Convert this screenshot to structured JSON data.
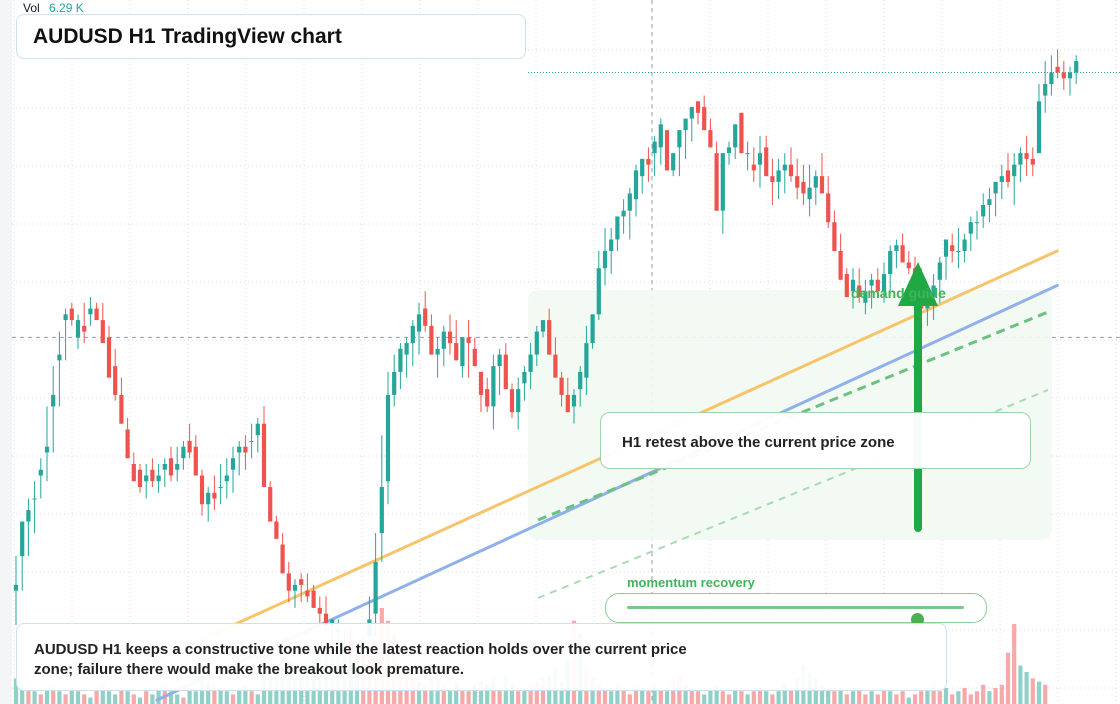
{
  "header": {
    "vol_label": "Vol",
    "vol_value": "6.29 K"
  },
  "title": "AUDUSD H1 TradingView chart",
  "annotations": {
    "callout": "H1 retest above the current price zone",
    "demand_label": "demand guide",
    "momentum_label": "momentum recovery",
    "momentum_level": 0.86,
    "note": "AUDUSD H1 keeps a constructive tone while the latest reaction holds over the current price zone; failure there would make the breakout look premature."
  },
  "colors": {
    "up": "#26a69a",
    "down": "#ef5350",
    "vol_up": "#8fd1c9",
    "vol_down": "#f6a9a8",
    "trend_orange": "#f7c46c",
    "trend_blue": "#8fb0ea",
    "accent_green": "#1fa843",
    "grid": "#d9dde3"
  },
  "chart_data": {
    "type": "candlestick",
    "symbol": "AUDUSD",
    "timeframe": "H1",
    "title": "AUDUSD H1 TradingView chart",
    "ylim": [
      0,
      100
    ],
    "grid": true,
    "candles_ohlc": [
      [
        14,
        8,
        15,
        20
      ],
      [
        20,
        14,
        26,
        26
      ],
      [
        26,
        20,
        28,
        30
      ],
      [
        30,
        24,
        30,
        33
      ],
      [
        34,
        30,
        35,
        37
      ],
      [
        38,
        33,
        39,
        46
      ],
      [
        46,
        38,
        48,
        53
      ],
      [
        54,
        46,
        55,
        59
      ],
      [
        61,
        54,
        62,
        63
      ],
      [
        63,
        60,
        61,
        64
      ],
      [
        58,
        56,
        61,
        62
      ],
      [
        60,
        57,
        59,
        64
      ],
      [
        62,
        60,
        63,
        65
      ],
      [
        63,
        61,
        61,
        64
      ],
      [
        61,
        59,
        57,
        64
      ],
      [
        58,
        55,
        51,
        60
      ],
      [
        53,
        47,
        48,
        56
      ],
      [
        48,
        46,
        43,
        51
      ],
      [
        42,
        40,
        37,
        44
      ],
      [
        36,
        33,
        33,
        38
      ],
      [
        35,
        31,
        32,
        36
      ],
      [
        33,
        30,
        34,
        36
      ],
      [
        35,
        32,
        33,
        37
      ],
      [
        33,
        31,
        34,
        36
      ],
      [
        35,
        32,
        36,
        37
      ],
      [
        37,
        33,
        34,
        39
      ],
      [
        35,
        33,
        36,
        39
      ],
      [
        37,
        35,
        39,
        40
      ],
      [
        40,
        37,
        38,
        43
      ],
      [
        39,
        36,
        34,
        41
      ],
      [
        34,
        27,
        29,
        35
      ],
      [
        29,
        26,
        31,
        32
      ],
      [
        31,
        28,
        30,
        34
      ],
      [
        32,
        29,
        32,
        36
      ],
      [
        33,
        30,
        34,
        37
      ],
      [
        35,
        31,
        37,
        39
      ],
      [
        38,
        34,
        39,
        40
      ],
      [
        39,
        35,
        38,
        41
      ],
      [
        40,
        37,
        40,
        43
      ],
      [
        41,
        38,
        43,
        44
      ],
      [
        43,
        33,
        32,
        46
      ],
      [
        32,
        27,
        26,
        33
      ],
      [
        26,
        23,
        23,
        27
      ],
      [
        22,
        20,
        17,
        24
      ],
      [
        17,
        12,
        14,
        19
      ],
      [
        14,
        11,
        15,
        16
      ],
      [
        16,
        12,
        15,
        17
      ],
      [
        14,
        12,
        13,
        17
      ],
      [
        14,
        11,
        11,
        15
      ],
      [
        11,
        8,
        10,
        13
      ],
      [
        10,
        7,
        8,
        13
      ],
      [
        8,
        5,
        9,
        9
      ],
      [
        7,
        4,
        7,
        9
      ],
      [
        6,
        4,
        6,
        7
      ],
      [
        5,
        3,
        3,
        8
      ],
      [
        3,
        2,
        2,
        4
      ],
      [
        3,
        2,
        5,
        6
      ],
      [
        6,
        5,
        9,
        13
      ],
      [
        10,
        6,
        19,
        24
      ],
      [
        24,
        19,
        32,
        41
      ],
      [
        33,
        29,
        48,
        52
      ],
      [
        48,
        46,
        52,
        55
      ],
      [
        52,
        49,
        56,
        57
      ],
      [
        55,
        51,
        57,
        58
      ],
      [
        57,
        53,
        60,
        61
      ],
      [
        59,
        55,
        62,
        64
      ],
      [
        63,
        59,
        60,
        66
      ],
      [
        60,
        57,
        55,
        62
      ],
      [
        55,
        51,
        56,
        58
      ],
      [
        56,
        53,
        59,
        60
      ],
      [
        59,
        55,
        57,
        62
      ],
      [
        57,
        54,
        54,
        61
      ],
      [
        53,
        51,
        58,
        58
      ],
      [
        58,
        51,
        57,
        61
      ],
      [
        56,
        54,
        53,
        58
      ],
      [
        52,
        45,
        48,
        52
      ],
      [
        49,
        45,
        46,
        51
      ],
      [
        46,
        42,
        53,
        55
      ],
      [
        53,
        48,
        55,
        56
      ],
      [
        55,
        51,
        49,
        57
      ],
      [
        49,
        44,
        45,
        50
      ],
      [
        45,
        42,
        49,
        51
      ],
      [
        50,
        47,
        52,
        53
      ],
      [
        52,
        49,
        55,
        57
      ],
      [
        55,
        53,
        59,
        60
      ],
      [
        59,
        58,
        61,
        61
      ],
      [
        61,
        57,
        55,
        63
      ],
      [
        55,
        53,
        51,
        58
      ],
      [
        51,
        46,
        48,
        52
      ],
      [
        48,
        46,
        45,
        51
      ],
      [
        46,
        43,
        48,
        49
      ],
      [
        49,
        46,
        52,
        53
      ],
      [
        51,
        48,
        57,
        60
      ],
      [
        57,
        56,
        62,
        62
      ],
      [
        62,
        61,
        70,
        73
      ],
      [
        70,
        67,
        73,
        77
      ],
      [
        73,
        69,
        75,
        77
      ],
      [
        75,
        73,
        79,
        78
      ],
      [
        79,
        76,
        80,
        82
      ],
      [
        80,
        75,
        83,
        84
      ],
      [
        82,
        79,
        87,
        88
      ],
      [
        86,
        83,
        89,
        89
      ],
      [
        89,
        85,
        88,
        91
      ],
      [
        90,
        86,
        92,
        93
      ],
      [
        91,
        88,
        95,
        96
      ],
      [
        94,
        91,
        87,
        93
      ],
      [
        87,
        86,
        90,
        89
      ],
      [
        91,
        86,
        94,
        92
      ],
      [
        94,
        89,
        96,
        95
      ],
      [
        96,
        92,
        98,
        98
      ],
      [
        99,
        95,
        97,
        99
      ],
      [
        98,
        94,
        94,
        100
      ],
      [
        94,
        91,
        91,
        96
      ],
      [
        90,
        84,
        80,
        92
      ],
      [
        80,
        76,
        90,
        90
      ],
      [
        90,
        88,
        91,
        92
      ],
      [
        91,
        89,
        95,
        95
      ],
      [
        97,
        94,
        90,
        97
      ],
      [
        90,
        87,
        90,
        92
      ],
      [
        88,
        85,
        87,
        91
      ],
      [
        88,
        84,
        90,
        93
      ],
      [
        91,
        88,
        86,
        93
      ],
      [
        86,
        81,
        85,
        89
      ],
      [
        85,
        82,
        87,
        89
      ],
      [
        87,
        83,
        88,
        90
      ],
      [
        88,
        85,
        86,
        91
      ],
      [
        86,
        82,
        84,
        89
      ],
      [
        85,
        81,
        83,
        88
      ],
      [
        82,
        79,
        84,
        88
      ],
      [
        84,
        81,
        86,
        87
      ],
      [
        86,
        83,
        83,
        90
      ],
      [
        83,
        77,
        78,
        86
      ],
      [
        78,
        73,
        73,
        80
      ],
      [
        73,
        71,
        68,
        76
      ],
      [
        69,
        66,
        65,
        70
      ],
      [
        66,
        63,
        68,
        70
      ],
      [
        67,
        64,
        65,
        70
      ],
      [
        64,
        62,
        66,
        68
      ],
      [
        67,
        63,
        68,
        69
      ],
      [
        68,
        65,
        66,
        70
      ],
      [
        66,
        64,
        69,
        71
      ],
      [
        69,
        66,
        73,
        74
      ],
      [
        73,
        70,
        74,
        75
      ],
      [
        74,
        71,
        71,
        76
      ],
      [
        71,
        69,
        70,
        73
      ],
      [
        70,
        67,
        68,
        72
      ],
      [
        68,
        64,
        63,
        70
      ],
      [
        63,
        60,
        65,
        66
      ],
      [
        65,
        61,
        67,
        69
      ],
      [
        68,
        64,
        71,
        72
      ],
      [
        72,
        68,
        75,
        75
      ],
      [
        74,
        71,
        73,
        76
      ],
      [
        73,
        70,
        73,
        77
      ],
      [
        73,
        71,
        75,
        76
      ],
      [
        76,
        73,
        78,
        79
      ],
      [
        78,
        75,
        78,
        80
      ],
      [
        79,
        77,
        81,
        83
      ],
      [
        81,
        78,
        82,
        84
      ],
      [
        83,
        79,
        85,
        85
      ],
      [
        85,
        82,
        86,
        88
      ],
      [
        87,
        84,
        85,
        90
      ],
      [
        86,
        81,
        88,
        90
      ],
      [
        88,
        85,
        90,
        91
      ],
      [
        90,
        86,
        89,
        93
      ],
      [
        89,
        86,
        88,
        91
      ],
      [
        90,
        93,
        99,
        102
      ],
      [
        100,
        97,
        102,
        106
      ],
      [
        102,
        100,
        104,
        107
      ],
      [
        105,
        103,
        104,
        108
      ],
      [
        104,
        101,
        103,
        106
      ],
      [
        103,
        100,
        104,
        105
      ],
      [
        104,
        102,
        106,
        107
      ]
    ],
    "volume": [
      [
        8,
        1
      ],
      [
        6,
        1
      ],
      [
        5,
        0
      ],
      [
        4,
        1
      ],
      [
        3,
        0
      ],
      [
        5,
        1
      ],
      [
        6,
        0
      ],
      [
        4,
        1
      ],
      [
        3,
        0
      ],
      [
        5,
        1
      ],
      [
        4,
        1
      ],
      [
        3,
        0
      ],
      [
        2,
        1
      ],
      [
        5,
        0
      ],
      [
        6,
        1
      ],
      [
        4,
        1
      ],
      [
        3,
        1
      ],
      [
        5,
        0
      ],
      [
        4,
        1
      ],
      [
        3,
        0
      ],
      [
        2,
        1
      ],
      [
        4,
        0
      ],
      [
        3,
        1
      ],
      [
        5,
        1
      ],
      [
        6,
        0
      ],
      [
        4,
        1
      ],
      [
        3,
        1
      ],
      [
        2,
        0
      ],
      [
        5,
        1
      ],
      [
        4,
        1
      ],
      [
        9,
        1
      ],
      [
        7,
        1
      ],
      [
        6,
        0
      ],
      [
        5,
        1
      ],
      [
        4,
        1
      ],
      [
        3,
        0
      ],
      [
        5,
        1
      ],
      [
        6,
        1
      ],
      [
        4,
        0
      ],
      [
        3,
        1
      ],
      [
        9,
        1
      ],
      [
        10,
        1
      ],
      [
        12,
        1
      ],
      [
        11,
        1
      ],
      [
        13,
        1
      ],
      [
        12,
        1
      ],
      [
        10,
        1
      ],
      [
        11,
        1
      ],
      [
        14,
        1
      ],
      [
        15,
        1
      ],
      [
        16,
        1
      ],
      [
        17,
        1
      ],
      [
        18,
        1
      ],
      [
        19,
        1
      ],
      [
        20,
        1
      ],
      [
        18,
        1
      ],
      [
        15,
        0
      ],
      [
        17,
        0
      ],
      [
        14,
        0
      ],
      [
        30,
        0
      ],
      [
        26,
        0
      ],
      [
        22,
        0
      ],
      [
        12,
        0
      ],
      [
        9,
        0
      ],
      [
        8,
        0
      ],
      [
        7,
        1
      ],
      [
        6,
        0
      ],
      [
        9,
        1
      ],
      [
        8,
        1
      ],
      [
        6,
        0
      ],
      [
        5,
        1
      ],
      [
        7,
        1
      ],
      [
        5,
        0
      ],
      [
        4,
        0
      ],
      [
        6,
        1
      ],
      [
        7,
        1
      ],
      [
        6,
        1
      ],
      [
        8,
        0
      ],
      [
        5,
        0
      ],
      [
        9,
        1
      ],
      [
        6,
        1
      ],
      [
        4,
        0
      ],
      [
        5,
        1
      ],
      [
        6,
        0
      ],
      [
        7,
        0
      ],
      [
        8,
        0
      ],
      [
        9,
        1
      ],
      [
        11,
        1
      ],
      [
        7,
        1
      ],
      [
        14,
        1
      ],
      [
        26,
        0
      ],
      [
        22,
        1
      ],
      [
        11,
        0
      ],
      [
        8,
        1
      ],
      [
        6,
        0
      ],
      [
        5,
        0
      ],
      [
        4,
        1
      ],
      [
        6,
        1
      ],
      [
        5,
        0
      ],
      [
        3,
        0
      ],
      [
        6,
        0
      ],
      [
        5,
        1
      ],
      [
        4,
        0
      ],
      [
        6,
        1
      ],
      [
        5,
        0
      ],
      [
        4,
        1
      ],
      [
        8,
        0
      ],
      [
        9,
        0
      ],
      [
        6,
        1
      ],
      [
        5,
        0
      ],
      [
        4,
        0
      ],
      [
        3,
        1
      ],
      [
        5,
        1
      ],
      [
        6,
        1
      ],
      [
        4,
        0
      ],
      [
        3,
        0
      ],
      [
        5,
        1
      ],
      [
        4,
        0
      ],
      [
        3,
        1
      ],
      [
        4,
        0
      ],
      [
        5,
        0
      ],
      [
        4,
        1
      ],
      [
        3,
        0
      ],
      [
        4,
        1
      ],
      [
        6,
        1
      ],
      [
        5,
        0
      ],
      [
        8,
        1
      ],
      [
        12,
        1
      ],
      [
        10,
        1
      ],
      [
        8,
        1
      ],
      [
        6,
        1
      ],
      [
        5,
        1
      ],
      [
        4,
        0
      ],
      [
        5,
        1
      ],
      [
        3,
        0
      ],
      [
        4,
        1
      ],
      [
        5,
        0
      ],
      [
        3,
        0
      ],
      [
        4,
        1
      ],
      [
        3,
        0
      ],
      [
        5,
        0
      ],
      [
        4,
        1
      ],
      [
        3,
        0
      ],
      [
        4,
        0
      ],
      [
        2,
        1
      ],
      [
        3,
        0
      ],
      [
        4,
        0
      ],
      [
        5,
        1
      ],
      [
        6,
        0
      ],
      [
        4,
        0
      ],
      [
        5,
        1
      ],
      [
        3,
        0
      ],
      [
        4,
        1
      ],
      [
        5,
        0
      ],
      [
        3,
        0
      ],
      [
        4,
        0
      ],
      [
        6,
        0
      ],
      [
        4,
        1
      ],
      [
        5,
        0
      ],
      [
        6,
        0
      ],
      [
        16,
        0
      ],
      [
        25,
        0
      ],
      [
        12,
        1
      ],
      [
        10,
        1
      ],
      [
        8,
        0
      ],
      [
        7,
        1
      ],
      [
        6,
        0
      ]
    ],
    "trendlines": [
      {
        "color": "orange",
        "from_index": 0,
        "from_price": 2,
        "to_index": 166,
        "to_price": 73
      },
      {
        "color": "blue",
        "from_index": 0,
        "from_price": -5,
        "to_index": 166,
        "to_price": 67
      }
    ],
    "current_price_level": 58,
    "top_dotted_level": 104
  }
}
